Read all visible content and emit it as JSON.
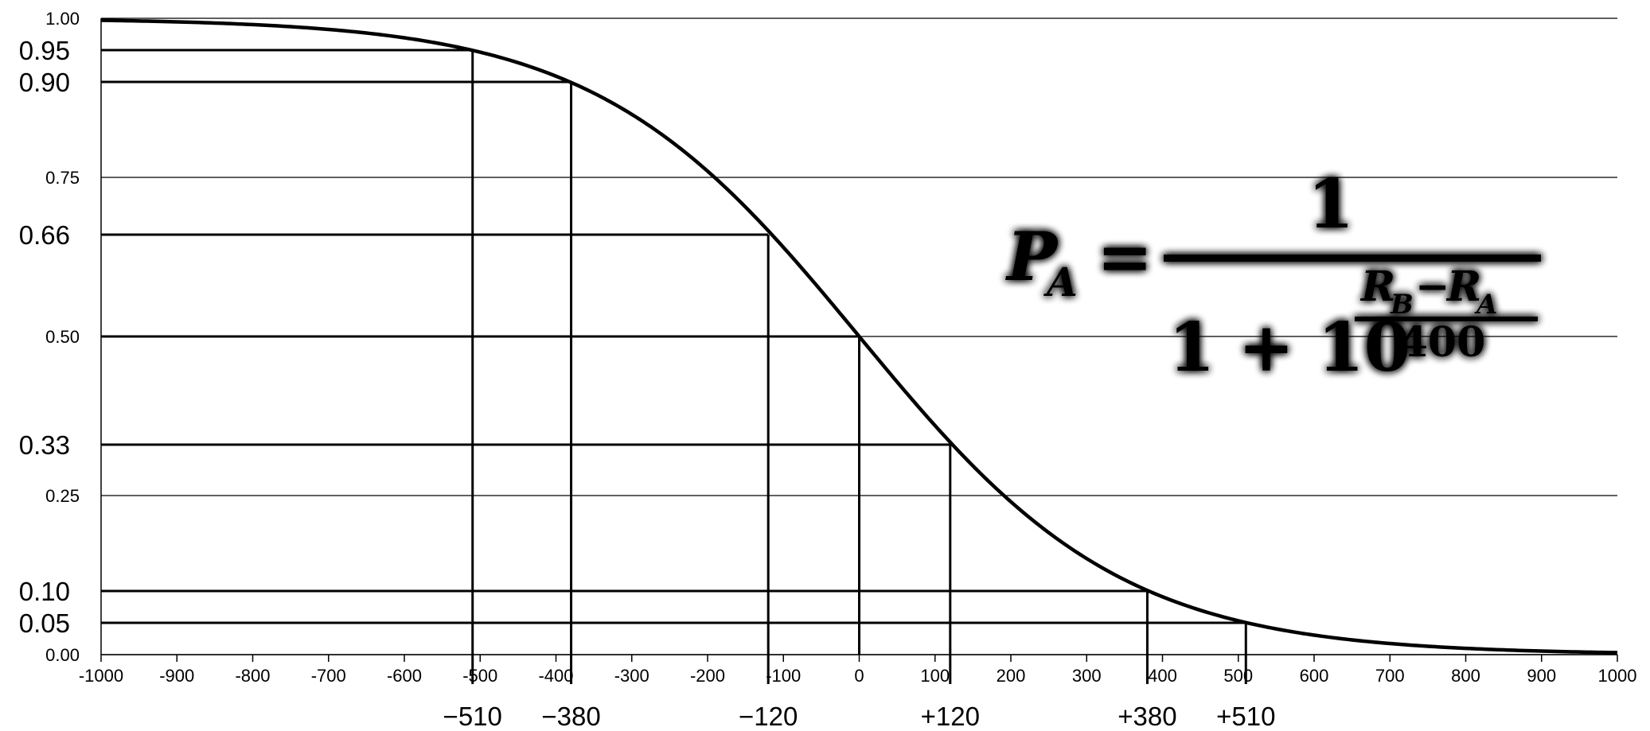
{
  "chart_data": {
    "type": "line",
    "xlim": [
      -1000,
      1000
    ],
    "ylim": [
      0,
      1
    ],
    "x_ticks": [
      "-1000",
      "-900",
      "-800",
      "-700",
      "-600",
      "-500",
      "-400",
      "-300",
      "-200",
      "-100",
      "0",
      "100",
      "200",
      "300",
      "400",
      "500",
      "600",
      "700",
      "800",
      "900",
      "1000"
    ],
    "y_ticks_minor": [
      {
        "value": 1.0,
        "label": "1.00"
      },
      {
        "value": 0.75,
        "label": "0.75"
      },
      {
        "value": 0.5,
        "label": "0.50"
      },
      {
        "value": 0.25,
        "label": "0.25"
      },
      {
        "value": 0.0,
        "label": "0.00"
      }
    ],
    "y_ticks_major": [
      {
        "value": 0.95,
        "label": "0.95"
      },
      {
        "value": 0.9,
        "label": "0.90"
      },
      {
        "value": 0.66,
        "label": "0.66"
      },
      {
        "value": 0.33,
        "label": "0.33"
      },
      {
        "value": 0.1,
        "label": "0.10"
      },
      {
        "value": 0.05,
        "label": "0.05"
      }
    ],
    "series": [
      {
        "function": "1/(1+10^(x/400))",
        "x_min": -1000,
        "x_max": 1000
      }
    ],
    "reference_points": [
      {
        "x": -510,
        "y": 0.95,
        "label": "−510"
      },
      {
        "x": -380,
        "y": 0.9,
        "label": "−380"
      },
      {
        "x": -120,
        "y": 0.66,
        "label": "−120"
      },
      {
        "x": 0,
        "y": 0.5,
        "label": ""
      },
      {
        "x": 120,
        "y": 0.33,
        "label": "+120"
      },
      {
        "x": 380,
        "y": 0.1,
        "label": "+380"
      },
      {
        "x": 510,
        "y": 0.05,
        "label": "+510"
      }
    ],
    "formula": {
      "lhs": "P",
      "lhs_sub": "A",
      "equals": "=",
      "numerator": "1",
      "denominator_base": "1 + 10",
      "exp_numerator_R1": "R",
      "exp_numerator_R1_sub": "B",
      "exp_minus": "−",
      "exp_numerator_R2": "R",
      "exp_numerator_R2_sub": "A",
      "exp_denominator": "400"
    }
  }
}
